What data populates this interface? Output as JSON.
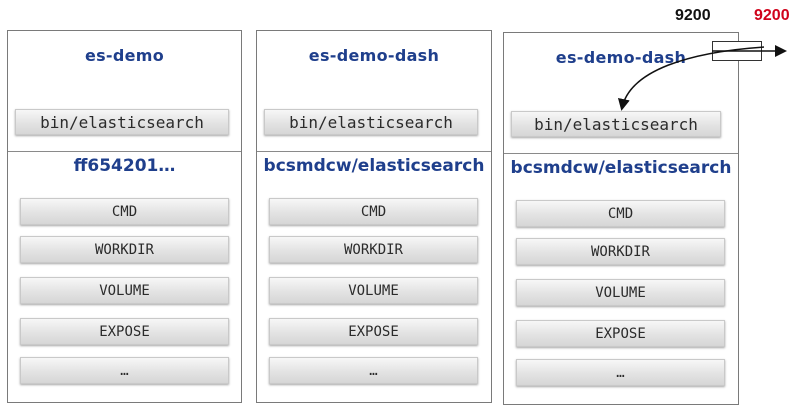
{
  "containers": [
    {
      "name": "es-demo",
      "command": "bin/elasticsearch",
      "image": "ff654201…",
      "layers": [
        "CMD",
        "WORKDIR",
        "VOLUME",
        "EXPOSE",
        "…"
      ]
    },
    {
      "name": "es-demo-dash",
      "command": "bin/elasticsearch",
      "image": "bcsmdcw/elasticsearch",
      "layers": [
        "CMD",
        "WORKDIR",
        "VOLUME",
        "EXPOSE",
        "…"
      ]
    },
    {
      "name": "es-demo-dash",
      "command": "bin/elasticsearch",
      "image": "bcsmdcw/elasticsearch",
      "layers": [
        "CMD",
        "WORKDIR",
        "VOLUME",
        "EXPOSE",
        "…"
      ]
    }
  ],
  "ports": {
    "container_port": "9200",
    "host_port": "9200",
    "host_port_color": "#d0021b"
  }
}
